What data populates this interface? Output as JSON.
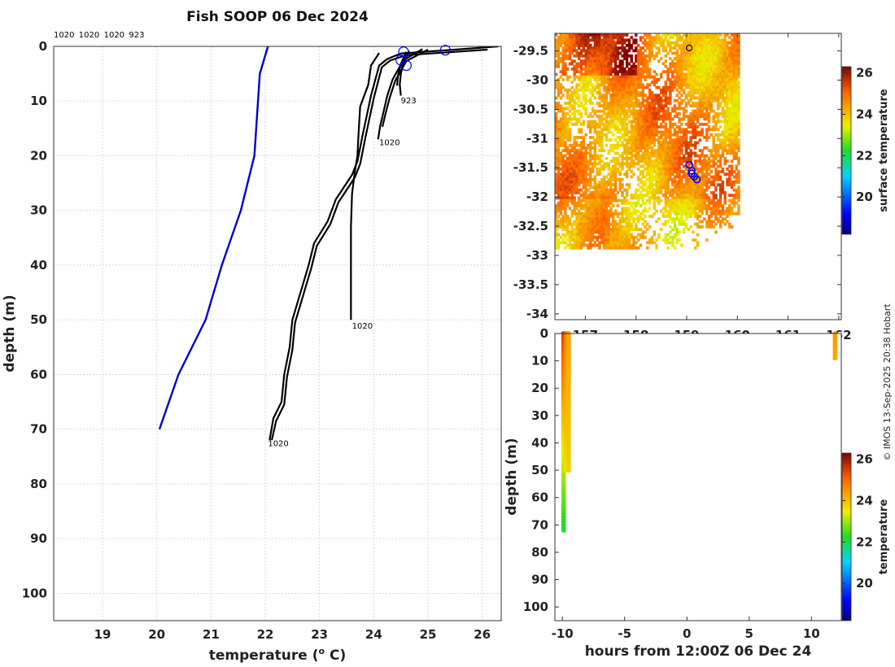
{
  "chart_data": [
    {
      "type": "line",
      "panel": "profiles",
      "title": "Fish SOOP 06 Dec 2024",
      "xlabel": "temperature (",
      "xlabel_sup": "o",
      "xlabel_tail": " C)",
      "ylabel": "depth (m)",
      "xlim": [
        18.1,
        26.35
      ],
      "ylim": [
        105,
        0
      ],
      "xticks": [
        19,
        20,
        21,
        22,
        23,
        24,
        25,
        26
      ],
      "yticks": [
        0,
        10,
        20,
        30,
        40,
        50,
        60,
        70,
        80,
        90,
        100
      ],
      "top_labels": [
        "1020",
        "1020",
        "1020",
        "923"
      ],
      "climatology": {
        "name": "climatology",
        "color": "#0000cc",
        "points": [
          [
            22.05,
            0
          ],
          [
            21.9,
            5
          ],
          [
            21.8,
            20
          ],
          [
            21.55,
            30
          ],
          [
            21.2,
            40
          ],
          [
            20.9,
            50
          ],
          [
            20.4,
            60
          ],
          [
            20.05,
            70
          ]
        ]
      },
      "series": [
        {
          "name": "1020 (70 m)",
          "label": "1020",
          "label_point": [
            22.05,
            72.5
          ],
          "points": [
            [
              26.3,
              0
            ],
            [
              25.5,
              0.6
            ],
            [
              24.5,
              1.3
            ],
            [
              24.25,
              2.3
            ],
            [
              24.1,
              3.5
            ],
            [
              23.95,
              9
            ],
            [
              23.8,
              16
            ],
            [
              23.7,
              21
            ],
            [
              23.6,
              23.5
            ],
            [
              23.3,
              28
            ],
            [
              23.15,
              32
            ],
            [
              22.9,
              36
            ],
            [
              22.8,
              40
            ],
            [
              22.65,
              45
            ],
            [
              22.5,
              50
            ],
            [
              22.45,
              55
            ],
            [
              22.35,
              60
            ],
            [
              22.3,
              65
            ],
            [
              22.15,
              68
            ],
            [
              22.08,
              72
            ]
          ]
        },
        {
          "name": "1020 (70 m) b",
          "label": "",
          "label_point": null,
          "points": [
            [
              26.1,
              0.6
            ],
            [
              24.6,
              1.6
            ],
            [
              24.3,
              2.6
            ],
            [
              24.15,
              3.8
            ],
            [
              24.0,
              9.5
            ],
            [
              23.85,
              16.5
            ],
            [
              23.75,
              21.5
            ],
            [
              23.65,
              24
            ],
            [
              23.35,
              28.5
            ],
            [
              23.2,
              32.5
            ],
            [
              22.95,
              36.5
            ],
            [
              22.85,
              40.5
            ],
            [
              22.7,
              45.5
            ],
            [
              22.55,
              50.5
            ],
            [
              22.5,
              55.5
            ],
            [
              22.4,
              60.5
            ],
            [
              22.35,
              65.5
            ],
            [
              22.2,
              68.5
            ],
            [
              22.12,
              72
            ]
          ]
        },
        {
          "name": "1020 (50 m)",
          "label": "1020",
          "label_point": [
            23.6,
            51
          ],
          "points": [
            [
              24.1,
              1.2
            ],
            [
              23.95,
              3.5
            ],
            [
              23.9,
              7
            ],
            [
              23.75,
              11
            ],
            [
              23.72,
              16
            ],
            [
              23.7,
              20
            ],
            [
              23.65,
              23
            ],
            [
              23.6,
              27
            ],
            [
              23.58,
              33
            ],
            [
              23.58,
              50
            ]
          ]
        },
        {
          "name": "1020 (17 m)",
          "label": "1020",
          "label_point": [
            24.1,
            17.5
          ],
          "points": [
            [
              24.9,
              0.5
            ],
            [
              24.55,
              2.5
            ],
            [
              24.35,
              6
            ],
            [
              24.25,
              9
            ],
            [
              24.18,
              12
            ],
            [
              24.12,
              14.5
            ],
            [
              24.08,
              17
            ]
          ]
        },
        {
          "name": "1020 (17 m) b",
          "label": "",
          "label_point": null,
          "points": [
            [
              25.0,
              0.6
            ],
            [
              24.6,
              2.7
            ],
            [
              24.4,
              6.2
            ],
            [
              24.3,
              9.2
            ],
            [
              24.22,
              12.2
            ],
            [
              24.16,
              14.7
            ]
          ]
        },
        {
          "name": "923 (9 m)",
          "label": "923",
          "label_point": [
            24.5,
            9.8
          ],
          "points": [
            [
              24.65,
              0.8
            ],
            [
              24.55,
              3
            ],
            [
              24.5,
              5
            ],
            [
              24.48,
              7
            ],
            [
              24.5,
              9
            ]
          ]
        },
        {
          "name": "923 (9 m) b",
          "label": "",
          "label_point": null,
          "points": [
            [
              24.6,
              1.0
            ],
            [
              24.5,
              3.2
            ],
            [
              24.45,
              5.2
            ],
            [
              24.43,
              7.2
            ]
          ]
        }
      ],
      "surface_markers": [
        [
          24.55,
          1.0
        ],
        [
          25.32,
          0.7
        ],
        [
          24.5,
          2.5
        ],
        [
          24.6,
          3.5
        ]
      ]
    },
    {
      "type": "heatmap",
      "panel": "map",
      "xlim": [
        156.4,
        162.05
      ],
      "ylim": [
        -34.1,
        -29.2
      ],
      "xticks": [
        157,
        158,
        159,
        160,
        161,
        162
      ],
      "yticks": [
        -29.5,
        -30,
        -30.5,
        -31,
        -31.5,
        -32,
        -32.5,
        -33,
        -33.5,
        -34
      ],
      "data_extent": {
        "lon": [
          156.4,
          160.0
        ],
        "lat": [
          -32.85,
          -29.2
        ]
      },
      "colorbar_label": "surface temperature",
      "colorbar_range": [
        18.2,
        26.3
      ],
      "colorbar_ticks": [
        20,
        22,
        24,
        26
      ],
      "track": [
        [
          159.05,
          -31.45
        ],
        [
          159.1,
          -31.55
        ],
        [
          159.15,
          -31.65
        ],
        [
          159.2,
          -31.7
        ],
        [
          159.1,
          -31.6
        ]
      ],
      "start_marker": [
        159.05,
        -29.45
      ]
    },
    {
      "type": "scatter",
      "panel": "time-depth",
      "xlabel": "hours from 12:00Z 06 Dec 24",
      "ylabel": "depth (m)",
      "xlim": [
        -10.6,
        12.4
      ],
      "ylim": [
        105,
        0
      ],
      "xticks": [
        -10,
        -5,
        0,
        5,
        10
      ],
      "yticks": [
        0,
        10,
        20,
        30,
        40,
        50,
        60,
        70,
        80,
        90,
        100
      ],
      "colorbar_label": "temperature",
      "colorbar_range": [
        18.2,
        26.3
      ],
      "colorbar_ticks": [
        20,
        22,
        24,
        26
      ],
      "casts": [
        {
          "hour": -9.9,
          "max_depth": 72,
          "t_surface": 25.5,
          "t_bottom": 22.1
        },
        {
          "hour": -9.7,
          "max_depth": 50,
          "t_surface": 24.8,
          "t_bottom": 23.6
        },
        {
          "hour": -9.5,
          "max_depth": 50,
          "t_surface": 24.3,
          "t_bottom": 23.8
        },
        {
          "hour": 11.9,
          "max_depth": 9,
          "t_surface": 24.4,
          "t_bottom": 24.2
        }
      ]
    }
  ],
  "credit": "© IMOS 13-Sep-2025 20:38 Hobart"
}
